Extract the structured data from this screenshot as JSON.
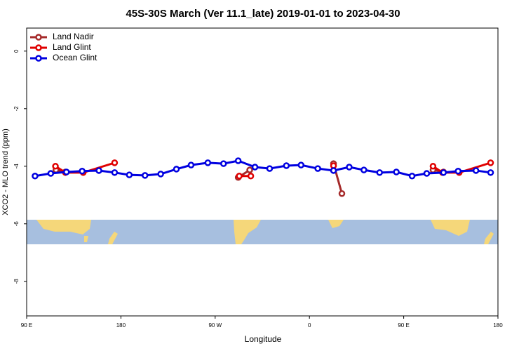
{
  "chart_data": {
    "type": "line",
    "title": "45S-30S March (Ver 11.1_late)   2019-01-01 to 2023-04-30",
    "x_label": "Longitude",
    "y_label": "XCO2 - MLO trend (ppm)",
    "xlim": [
      90,
      540
    ],
    "ylim": [
      -9.2,
      0.8
    ],
    "xticks": [
      {
        "value": 90,
        "label": "90 E"
      },
      180,
      {
        "value": 270,
        "label": "90 W"
      },
      {
        "value": 360,
        "label": "0"
      },
      {
        "value": 450,
        "label": "90 E"
      },
      {
        "value": 540,
        "label": "180"
      }
    ],
    "yticks": [
      0,
      -2,
      -4,
      -6,
      -8
    ],
    "legend": "top-left",
    "series": [
      {
        "name": "Land Nadir",
        "color": "#a52a2a",
        "x": [
          118,
          127,
          292,
          303,
          383,
          391,
          478,
          488
        ],
        "values": [
          -4.13,
          -4.2,
          -4.39,
          -4.13,
          -3.91,
          -4.95,
          -4.13,
          -4.2
        ]
      },
      {
        "name": "Land Glint",
        "color": "#e00000",
        "x": [
          117.5,
          127,
          144,
          174,
          293,
          304,
          383,
          478,
          487,
          503,
          533
        ],
        "values": [
          -4.0,
          -4.22,
          -4.22,
          -3.88,
          -4.34,
          -4.34,
          -3.98,
          -4.0,
          -4.22,
          -4.22,
          -3.88
        ]
      },
      {
        "name": "Ocean Glint",
        "color": "#0000e0",
        "x": [
          98,
          113,
          128,
          143,
          159,
          174,
          188,
          203,
          218,
          233,
          247,
          263,
          278,
          292,
          308,
          322,
          338,
          352,
          368,
          383,
          398,
          412,
          427,
          443,
          458,
          472,
          488,
          502,
          519,
          533
        ],
        "values": [
          -4.34,
          -4.25,
          -4.2,
          -4.17,
          -4.15,
          -4.22,
          -4.3,
          -4.32,
          -4.27,
          -4.1,
          -3.96,
          -3.88,
          -3.91,
          -3.81,
          -4.03,
          -4.08,
          -3.98,
          -3.96,
          -4.08,
          -4.15,
          -4.03,
          -4.13,
          -4.22,
          -4.2,
          -4.34,
          -4.25,
          -4.22,
          -4.17,
          -4.15,
          -4.22
        ]
      }
    ]
  }
}
